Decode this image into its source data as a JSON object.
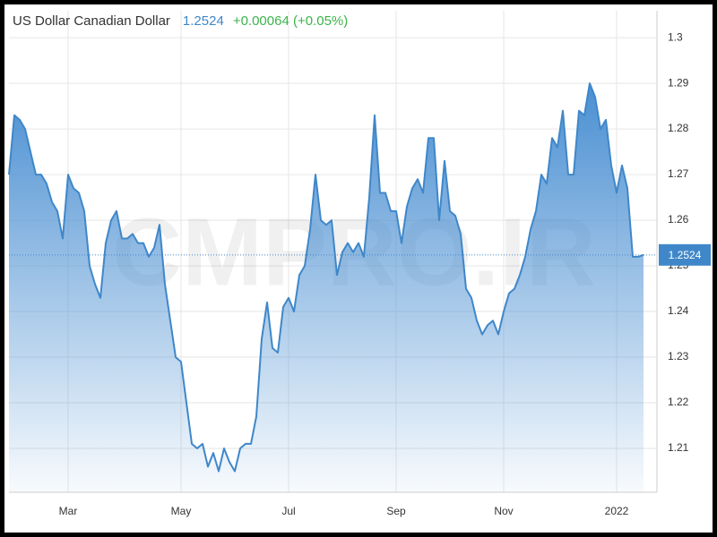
{
  "chart_data": {
    "type": "area",
    "title": "US Dollar Canadian Dollar",
    "change": "+0.00064 (+0.05%)",
    "watermark": "CMPRO.IR",
    "categories": [
      null,
      null,
      null,
      null,
      null,
      null,
      null,
      null,
      null,
      null,
      null,
      "Mar",
      null,
      null,
      null,
      null,
      null,
      null,
      null,
      null,
      null,
      null,
      null,
      null,
      null,
      null,
      null,
      null,
      null,
      null,
      null,
      null,
      "May",
      null,
      null,
      null,
      null,
      null,
      null,
      null,
      null,
      null,
      null,
      null,
      null,
      null,
      null,
      null,
      null,
      null,
      null,
      null,
      "Jul",
      null,
      null,
      null,
      null,
      null,
      null,
      null,
      null,
      null,
      null,
      null,
      null,
      null,
      null,
      null,
      null,
      null,
      null,
      null,
      "Sep",
      null,
      null,
      null,
      null,
      null,
      null,
      null,
      null,
      null,
      null,
      null,
      null,
      null,
      null,
      null,
      null,
      null,
      null,
      null,
      "Nov",
      null,
      null,
      null,
      null,
      null,
      null,
      null,
      null,
      null,
      null,
      null,
      null,
      null,
      null,
      null,
      null,
      null,
      null,
      null,
      null,
      "2022",
      null,
      null,
      null,
      null,
      null
    ],
    "values": [
      1.27,
      1.283,
      1.282,
      1.28,
      1.275,
      1.27,
      1.27,
      1.268,
      1.264,
      1.262,
      1.256,
      1.27,
      1.267,
      1.266,
      1.262,
      1.25,
      1.246,
      1.243,
      1.255,
      1.26,
      1.262,
      1.256,
      1.256,
      1.257,
      1.255,
      1.255,
      1.252,
      1.254,
      1.259,
      1.246,
      1.238,
      1.23,
      1.229,
      1.22,
      1.211,
      1.21,
      1.211,
      1.206,
      1.209,
      1.205,
      1.21,
      1.207,
      1.205,
      1.21,
      1.211,
      1.211,
      1.217,
      1.234,
      1.242,
      1.232,
      1.231,
      1.241,
      1.243,
      1.24,
      1.248,
      1.25,
      1.258,
      1.27,
      1.26,
      1.259,
      1.26,
      1.248,
      1.253,
      1.255,
      1.253,
      1.255,
      1.252,
      1.265,
      1.283,
      1.266,
      1.266,
      1.262,
      1.262,
      1.255,
      1.263,
      1.267,
      1.269,
      1.266,
      1.278,
      1.278,
      1.26,
      1.273,
      1.262,
      1.261,
      1.257,
      1.245,
      1.243,
      1.238,
      1.235,
      1.237,
      1.238,
      1.235,
      1.24,
      1.244,
      1.245,
      1.248,
      1.252,
      1.258,
      1.262,
      1.27,
      1.268,
      1.278,
      1.276,
      1.284,
      1.27,
      1.27,
      1.284,
      1.283,
      1.29,
      1.287,
      1.28,
      1.282,
      1.272,
      1.266,
      1.272,
      1.267,
      1.252,
      1.252,
      1.2524
    ],
    "color": "#3f87c9",
    "ylim": [
      1.2004,
      1.3059
    ],
    "yticks": [
      1.21,
      1.22,
      1.23,
      1.24,
      1.25,
      1.26,
      1.27,
      1.28,
      1.29,
      1.3
    ],
    "grid": true
  }
}
